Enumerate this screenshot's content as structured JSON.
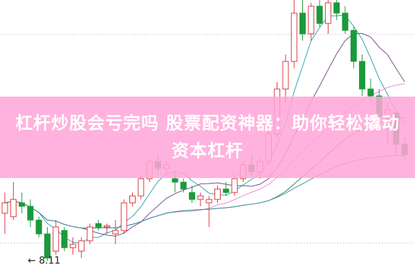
{
  "headline": {
    "line1": "杠杆炒股会亏完吗 股票配资神器：助你轻松撬动",
    "line2": "资本杠杆"
  },
  "chart_data": {
    "type": "candlestick",
    "low_marker": "8.11",
    "colors": {
      "up": "#d9363e",
      "down": "#1a9a3a",
      "ma5": "#2aa7a7",
      "ma10": "#7a4b8c",
      "ma20": "#e38fe0",
      "ma30": "#2f8f3a",
      "ma60": "#3d8fa8"
    },
    "moving_averages": [
      5,
      10,
      20,
      30,
      60
    ],
    "grid": "dotted",
    "candles": [
      [
        8.8,
        9.1,
        8.5,
        8.95
      ],
      [
        8.75,
        9.25,
        8.7,
        9.0
      ],
      [
        8.95,
        9.1,
        8.8,
        8.9
      ],
      [
        8.9,
        9.0,
        8.6,
        8.7
      ],
      [
        8.7,
        8.75,
        8.45,
        8.5
      ],
      [
        8.5,
        8.6,
        8.11,
        8.15
      ],
      [
        8.25,
        8.7,
        8.2,
        8.6
      ],
      [
        8.55,
        8.6,
        8.25,
        8.3
      ],
      [
        8.3,
        8.45,
        8.2,
        8.35
      ],
      [
        8.25,
        8.45,
        8.15,
        8.4
      ],
      [
        8.4,
        8.65,
        8.35,
        8.6
      ],
      [
        8.65,
        8.7,
        8.55,
        8.6
      ],
      [
        8.6,
        8.65,
        8.5,
        8.62
      ],
      [
        8.5,
        8.7,
        8.35,
        8.55
      ],
      [
        8.55,
        9.0,
        8.5,
        8.95
      ],
      [
        8.95,
        9.1,
        8.9,
        9.05
      ],
      [
        9.05,
        9.35,
        9.0,
        9.3
      ],
      [
        9.3,
        9.6,
        9.25,
        9.55
      ],
      [
        9.55,
        9.65,
        9.4,
        9.45
      ],
      [
        9.45,
        9.55,
        9.35,
        9.5
      ],
      [
        9.3,
        9.4,
        9.1,
        9.25
      ],
      [
        9.25,
        9.3,
        9.1,
        9.15
      ],
      [
        9.1,
        9.2,
        8.95,
        9.0
      ],
      [
        9.0,
        9.1,
        8.9,
        9.05
      ],
      [
        8.95,
        9.05,
        8.6,
        9.0
      ],
      [
        9.0,
        9.2,
        8.95,
        9.15
      ],
      [
        9.15,
        9.25,
        9.05,
        9.1
      ],
      [
        9.1,
        9.35,
        9.05,
        9.3
      ],
      [
        9.3,
        9.55,
        9.25,
        9.5
      ],
      [
        9.5,
        9.65,
        9.35,
        9.4
      ],
      [
        9.4,
        9.6,
        9.3,
        9.55
      ],
      [
        9.55,
        10.0,
        9.5,
        9.95
      ],
      [
        9.95,
        10.7,
        9.9,
        10.6
      ],
      [
        10.6,
        11.1,
        10.4,
        11.0
      ],
      [
        11.0,
        11.9,
        10.9,
        11.7
      ],
      [
        11.7,
        11.9,
        11.3,
        11.4
      ],
      [
        11.4,
        11.85,
        11.3,
        11.8
      ],
      [
        11.8,
        11.95,
        11.5,
        11.55
      ],
      [
        11.55,
        11.9,
        11.4,
        11.85
      ],
      [
        11.85,
        11.95,
        11.6,
        11.7
      ],
      [
        11.7,
        11.8,
        11.4,
        11.45
      ],
      [
        11.45,
        11.5,
        10.9,
        11.0
      ],
      [
        11.0,
        11.1,
        10.5,
        10.6
      ],
      [
        10.6,
        10.75,
        10.4,
        10.5
      ],
      [
        10.5,
        10.6,
        10.1,
        10.2
      ],
      [
        10.2,
        10.4,
        9.8,
        10.3
      ],
      [
        10.25,
        10.3,
        9.65,
        9.8
      ],
      [
        9.8,
        9.9,
        9.55,
        9.65
      ]
    ]
  }
}
